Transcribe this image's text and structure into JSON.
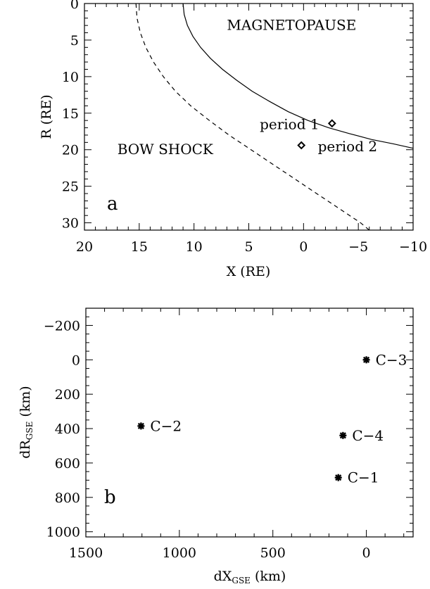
{
  "chart_data": [
    {
      "type": "line",
      "panel_label": "a",
      "xlabel": "X (RE)",
      "ylabel": "R (RE)",
      "xlim": [
        20,
        -10
      ],
      "ylim": [
        0,
        31
      ],
      "x_reversed": true,
      "y_reversed": true,
      "xticks": [
        20,
        15,
        10,
        5,
        0,
        -5,
        -10
      ],
      "xtick_labels": [
        "20",
        "15",
        "10",
        "5",
        "0",
        "−5",
        "−10"
      ],
      "yticks": [
        0,
        5,
        10,
        15,
        20,
        25,
        30
      ],
      "ytick_labels": [
        "0",
        "5",
        "10",
        "15",
        "20",
        "25",
        "30"
      ],
      "series": [
        {
          "name": "MAGNETOPAUSE",
          "style": "solid",
          "x": [
            11.0,
            10.9,
            10.6,
            10.1,
            9.4,
            8.5,
            7.4,
            6.1,
            4.7,
            3.1,
            1.4,
            -0.4,
            -2.3,
            -4.2,
            -6.2,
            -8.2,
            -10.0
          ],
          "y": [
            0,
            1.5,
            3.0,
            4.5,
            6.0,
            7.5,
            9.0,
            10.5,
            12.0,
            13.4,
            14.8,
            16.0,
            17.0,
            17.8,
            18.6,
            19.2,
            19.8
          ]
        },
        {
          "name": "BOW SHOCK",
          "style": "dashed",
          "x": [
            15.3,
            15.2,
            14.9,
            14.4,
            13.7,
            12.8,
            11.7,
            10.3,
            8.6,
            6.8,
            4.8,
            2.8,
            0.8,
            -1.2,
            -3.2,
            -5.2,
            -6.0
          ],
          "y": [
            0,
            2.0,
            4.0,
            6.0,
            8.0,
            10.0,
            12.0,
            14.0,
            16.0,
            18.0,
            20.0,
            22.0,
            24.0,
            26.0,
            28.0,
            30.0,
            31.0
          ]
        }
      ],
      "points": [
        {
          "name": "period 1",
          "x": -2.6,
          "y": 16.4,
          "marker": "diamond"
        },
        {
          "name": "period 2",
          "x": 0.2,
          "y": 19.4,
          "marker": "diamond"
        }
      ],
      "annotations": [
        {
          "text": "MAGNETOPAUSE",
          "x": 7.0,
          "y": 3.6
        },
        {
          "text": "BOW SHOCK",
          "x": 17.0,
          "y": 20.6
        },
        {
          "text": "period 1",
          "x": 4.0,
          "y": 17.2
        },
        {
          "text": "period 2",
          "x": -1.3,
          "y": 20.2
        }
      ]
    },
    {
      "type": "scatter",
      "panel_label": "b",
      "xlabel": {
        "main": "dX",
        "sub": "GSE",
        "unit": "(km)"
      },
      "ylabel": {
        "main": "dR",
        "sub": "GSE",
        "unit": "(km)"
      },
      "xlim": [
        1500,
        -250
      ],
      "ylim": [
        -300,
        1030
      ],
      "x_reversed": true,
      "y_reversed": true,
      "xticks": [
        1500,
        1000,
        500,
        0
      ],
      "xtick_labels": [
        "1500",
        "1000",
        "500",
        "0"
      ],
      "yticks": [
        -200,
        0,
        200,
        400,
        600,
        800,
        1000
      ],
      "ytick_labels": [
        "−200",
        "0",
        "200",
        "400",
        "600",
        "800",
        "1000"
      ],
      "points": [
        {
          "name": "C−1",
          "x": 150,
          "y": 685,
          "marker": "asterisk"
        },
        {
          "name": "C−2",
          "x": 1205,
          "y": 385,
          "marker": "asterisk"
        },
        {
          "name": "C−3",
          "x": 0,
          "y": 0,
          "marker": "asterisk"
        },
        {
          "name": "C−4",
          "x": 125,
          "y": 440,
          "marker": "asterisk"
        }
      ]
    }
  ]
}
